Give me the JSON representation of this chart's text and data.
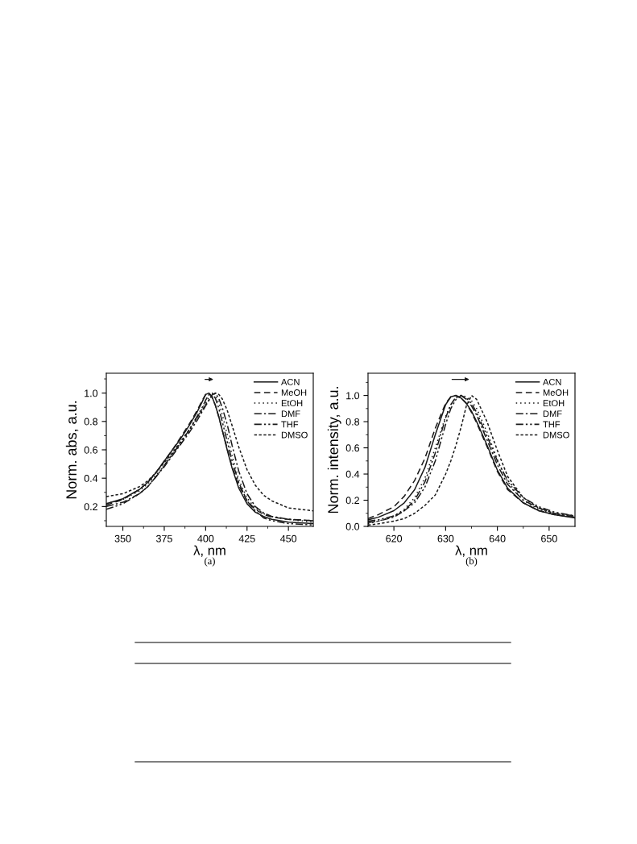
{
  "chart_data": [
    {
      "type": "line",
      "xlabel": "λ, nm",
      "ylabel": "Norm. abs, a.u.",
      "annotations": [
        "(a)"
      ],
      "legend": "top right",
      "grid": false,
      "x": [
        340,
        350,
        360,
        365,
        370,
        375,
        380,
        385,
        390,
        395,
        398,
        400,
        402,
        404,
        406,
        408,
        410,
        413,
        416,
        420,
        425,
        430,
        435,
        440,
        450,
        465
      ],
      "xlim": [
        340,
        465
      ],
      "ylim": [
        0.06,
        1.14
      ],
      "xticks": [
        350,
        {
          "value": 362.5,
          "label": null
        },
        375,
        {
          "value": 387.5,
          "label": null
        },
        400,
        {
          "value": 412.5,
          "label": null
        },
        425,
        {
          "value": 437.5,
          "label": null
        },
        450
      ],
      "yticks": [
        {
          "value": 0.1,
          "label": null
        },
        0.2,
        {
          "value": 0.3,
          "label": null
        },
        0.4,
        {
          "value": 0.5,
          "label": null
        },
        0.6,
        {
          "value": 0.7,
          "label": null
        },
        0.8,
        {
          "value": 0.9,
          "label": null
        },
        {
          "value": 1.0,
          "label": "1.0"
        },
        {
          "value": 1.1,
          "label": null
        }
      ],
      "series": [
        {
          "name": "ACN",
          "color": "#1a1a1a",
          "line_style": "solid",
          "values": [
            0.22,
            0.255,
            0.32,
            0.37,
            0.44,
            0.52,
            0.6,
            0.68,
            0.77,
            0.87,
            0.94,
            0.99,
            1.0,
            0.97,
            0.91,
            0.83,
            0.74,
            0.6,
            0.47,
            0.33,
            0.22,
            0.16,
            0.13,
            0.11,
            0.09,
            0.08
          ]
        },
        {
          "name": "MeOH",
          "color": "#1a1a1a",
          "line_style": "dashed",
          "values": [
            0.21,
            0.25,
            0.32,
            0.37,
            0.44,
            0.52,
            0.6,
            0.69,
            0.78,
            0.88,
            0.95,
            0.99,
            1.0,
            0.97,
            0.91,
            0.83,
            0.74,
            0.61,
            0.48,
            0.35,
            0.24,
            0.18,
            0.145,
            0.125,
            0.11,
            0.1
          ]
        },
        {
          "name": "EtOH",
          "color": "#1a1a1a",
          "line_style": "dotted",
          "values": [
            0.22,
            0.25,
            0.31,
            0.36,
            0.42,
            0.49,
            0.57,
            0.65,
            0.73,
            0.83,
            0.89,
            0.93,
            0.97,
            1.0,
            0.98,
            0.93,
            0.85,
            0.71,
            0.56,
            0.39,
            0.26,
            0.19,
            0.15,
            0.13,
            0.11,
            0.09
          ]
        },
        {
          "name": "DMF",
          "color": "#1a1a1a",
          "line_style": "dashdot",
          "values": [
            0.2,
            0.23,
            0.29,
            0.34,
            0.41,
            0.48,
            0.56,
            0.64,
            0.72,
            0.81,
            0.87,
            0.91,
            0.95,
            0.99,
            1.0,
            0.96,
            0.9,
            0.78,
            0.63,
            0.45,
            0.29,
            0.2,
            0.155,
            0.13,
            0.11,
            0.1
          ]
        },
        {
          "name": "THF",
          "color": "#1a1a1a",
          "line_style": "dashdotdot",
          "values": [
            0.18,
            0.22,
            0.29,
            0.34,
            0.41,
            0.49,
            0.57,
            0.65,
            0.74,
            0.84,
            0.9,
            0.95,
            0.99,
            1.0,
            0.96,
            0.89,
            0.8,
            0.66,
            0.52,
            0.37,
            0.24,
            0.17,
            0.12,
            0.1,
            0.08,
            0.07
          ]
        },
        {
          "name": "DMSO",
          "color": "#1a1a1a",
          "line_style": "shortdash",
          "values": [
            0.27,
            0.29,
            0.34,
            0.38,
            0.44,
            0.51,
            0.58,
            0.66,
            0.74,
            0.83,
            0.88,
            0.92,
            0.95,
            0.98,
            1.0,
            0.99,
            0.96,
            0.88,
            0.77,
            0.62,
            0.46,
            0.35,
            0.28,
            0.24,
            0.19,
            0.17
          ]
        }
      ]
    },
    {
      "type": "line",
      "xlabel": "λ, nm",
      "ylabel": "Norm. intensity, a.u.",
      "annotations": [
        "(b)"
      ],
      "legend": "top right",
      "grid": false,
      "x": [
        615,
        617,
        620,
        622,
        624,
        626,
        628,
        630,
        631,
        632,
        633,
        634,
        635,
        636,
        638,
        640,
        642,
        645,
        648,
        651,
        655
      ],
      "xlim": [
        615,
        655
      ],
      "ylim": [
        0.0,
        1.17
      ],
      "xticks": [
        620,
        {
          "value": 625,
          "label": null
        },
        630,
        {
          "value": 635,
          "label": null
        },
        640,
        {
          "value": 645,
          "label": null
        },
        650
      ],
      "yticks": [
        {
          "value": 0.0,
          "label": "0.0"
        },
        {
          "value": 0.1,
          "label": null
        },
        0.2,
        {
          "value": 0.3,
          "label": null
        },
        0.4,
        {
          "value": 0.5,
          "label": null
        },
        0.6,
        {
          "value": 0.7,
          "label": null
        },
        0.8,
        {
          "value": 0.9,
          "label": null
        },
        {
          "value": 1.0,
          "label": "1.0"
        },
        {
          "value": 1.1,
          "label": null
        }
      ],
      "series": [
        {
          "name": "ACN",
          "color": "#1a1a1a",
          "line_style": "solid",
          "values": [
            0.05,
            0.07,
            0.12,
            0.18,
            0.28,
            0.45,
            0.7,
            0.93,
            0.99,
            1.0,
            0.98,
            0.94,
            0.88,
            0.8,
            0.62,
            0.43,
            0.29,
            0.18,
            0.12,
            0.09,
            0.065
          ]
        },
        {
          "name": "MeOH",
          "color": "#1a1a1a",
          "line_style": "dashed",
          "values": [
            0.06,
            0.09,
            0.15,
            0.23,
            0.35,
            0.52,
            0.75,
            0.94,
            0.99,
            1.0,
            0.98,
            0.94,
            0.87,
            0.79,
            0.61,
            0.42,
            0.28,
            0.18,
            0.12,
            0.09,
            0.07
          ]
        },
        {
          "name": "EtOH",
          "color": "#1a1a1a",
          "line_style": "dotted",
          "values": [
            0.02,
            0.04,
            0.08,
            0.13,
            0.22,
            0.37,
            0.6,
            0.84,
            0.93,
            0.98,
            1.0,
            0.99,
            0.96,
            0.9,
            0.72,
            0.51,
            0.34,
            0.2,
            0.13,
            0.09,
            0.07
          ]
        },
        {
          "name": "DMF",
          "color": "#1a1a1a",
          "line_style": "dashdot",
          "values": [
            0.03,
            0.04,
            0.07,
            0.12,
            0.2,
            0.34,
            0.56,
            0.83,
            0.93,
            0.99,
            1.0,
            0.97,
            0.92,
            0.85,
            0.66,
            0.47,
            0.32,
            0.2,
            0.14,
            0.1,
            0.08
          ]
        },
        {
          "name": "THF",
          "color": "#1a1a1a",
          "line_style": "dashdotdot",
          "values": [
            0.04,
            0.05,
            0.08,
            0.12,
            0.18,
            0.3,
            0.5,
            0.78,
            0.9,
            0.97,
            1.0,
            0.98,
            0.94,
            0.87,
            0.69,
            0.5,
            0.35,
            0.22,
            0.15,
            0.11,
            0.08
          ]
        },
        {
          "name": "DMSO",
          "color": "#1a1a1a",
          "line_style": "shortdash",
          "values": [
            0.01,
            0.02,
            0.04,
            0.06,
            0.1,
            0.16,
            0.24,
            0.4,
            0.5,
            0.62,
            0.76,
            0.92,
            1.0,
            0.97,
            0.8,
            0.58,
            0.38,
            0.22,
            0.14,
            0.1,
            0.07
          ]
        }
      ]
    }
  ]
}
